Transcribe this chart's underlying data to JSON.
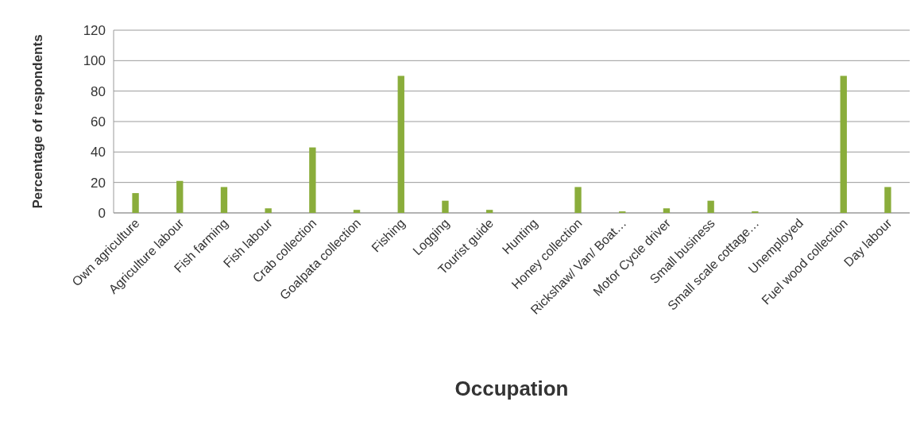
{
  "chart_data": {
    "type": "bar",
    "xlabel": "Occupation",
    "ylabel": "Percentage of respondents",
    "categories": [
      "Own agriculture",
      "Agriculture labour",
      "Fish farming",
      "Fish labour",
      "Crab collection",
      "Goalpata collection",
      "Fishing",
      "Logging",
      "Tourist guide",
      "Hunting",
      "Honey collection",
      "Rickshaw/ Van/ Boat…",
      "Motor Cycle driver",
      "Small business",
      "Small scale cottage…",
      "Unemployed",
      "Fuel wood collection",
      "Day labour"
    ],
    "values": [
      13,
      21,
      17,
      3,
      43,
      2,
      90,
      8,
      2,
      0,
      17,
      1,
      3,
      8,
      1,
      0,
      90,
      17
    ],
    "color": "#8aad3b",
    "ylim": [
      0,
      120
    ],
    "yticks": [
      0,
      20,
      40,
      60,
      80,
      100,
      120
    ],
    "grid": "y"
  }
}
